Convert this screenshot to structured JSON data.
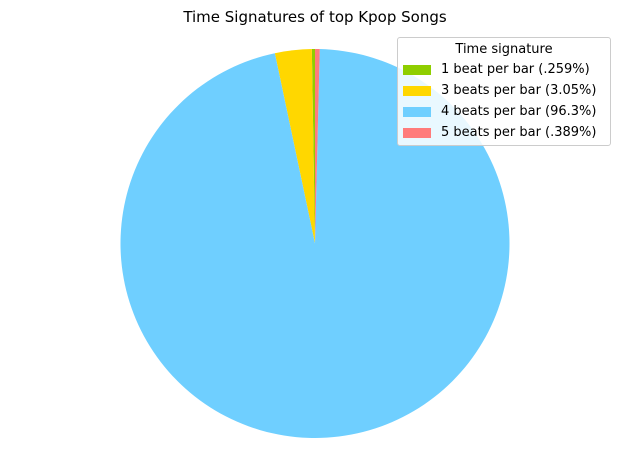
{
  "chart_data": {
    "type": "pie",
    "title": "Time Signatures of top Kpop Songs",
    "legend_title": "Time signature",
    "legend_placement": "top-right",
    "slices": [
      {
        "label": "1 beat per bar (.259%)",
        "value": 0.259,
        "color": "#8fce00"
      },
      {
        "label": "3 beats per bar (3.05%)",
        "value": 3.05,
        "color": "#ffd700"
      },
      {
        "label": "4 beats per bar (96.3%)",
        "value": 96.3,
        "color": "#6fcfff"
      },
      {
        "label": "5 beats per bar (.389%)",
        "value": 0.389,
        "color": "#ff7b7b"
      }
    ],
    "start_angle_deg": 90,
    "direction": "counterclockwise"
  }
}
